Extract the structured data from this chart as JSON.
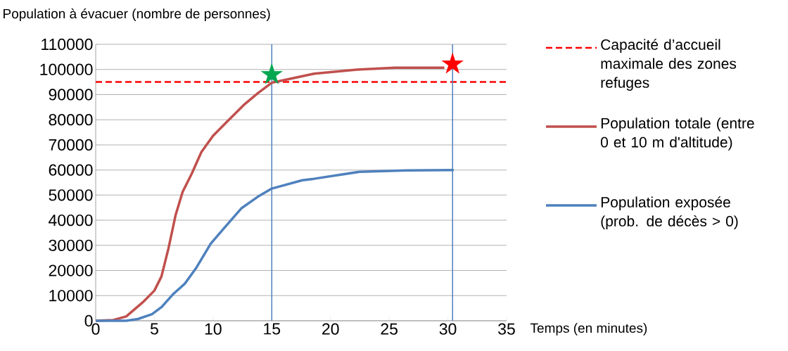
{
  "chart_data": {
    "type": "line",
    "xlabel": "Temps (en minutes)",
    "ylabel": "Population à évacuer (nombre de personnes)",
    "xlim": [
      0,
      35
    ],
    "xticks": [
      0,
      5,
      10,
      15,
      20,
      25,
      30,
      35
    ],
    "ylim": [
      0,
      110000
    ],
    "yticks": [
      0,
      10000,
      20000,
      30000,
      40000,
      50000,
      60000,
      70000,
      80000,
      90000,
      100000,
      110000
    ],
    "grid": "y",
    "legend": "right",
    "ref_lines": [
      {
        "axis": "y",
        "value": 95000,
        "label": "Capacité d’accueil maximale des zones refuges",
        "color": "#ff0000",
        "line_style": "dashed"
      },
      {
        "axis": "x",
        "value": 15,
        "color": "#4f81bd"
      },
      {
        "axis": "x",
        "value": 30.4,
        "color": "#4f81bd"
      }
    ],
    "series": [
      {
        "name": "Population totale (entre 0 et 10 m d'altitude)",
        "color": "#c0504d",
        "x": [
          0,
          1.5,
          2.6,
          4.0,
          5.0,
          5.6,
          6.2,
          6.8,
          7.4,
          8.2,
          9.0,
          10.0,
          11.2,
          12.6,
          13.8,
          15.0,
          15.8,
          18.6,
          22.5,
          25.5,
          29.7
        ],
        "values": [
          0,
          300,
          1700,
          7300,
          12000,
          17600,
          28800,
          41900,
          51200,
          58700,
          67100,
          73600,
          79300,
          85800,
          90500,
          94700,
          95500,
          98300,
          100000,
          100700,
          100700
        ]
      },
      {
        "name": "Population exposée (prob. de décès > 0)",
        "color": "#4f81bd",
        "x": [
          0,
          2.6,
          3.6,
          4.8,
          5.6,
          6.6,
          7.6,
          8.6,
          9.8,
          11.0,
          12.4,
          13.8,
          15.0,
          17.6,
          18.6,
          22.5,
          26.5,
          30.5
        ],
        "values": [
          0,
          0,
          700,
          2600,
          5400,
          10600,
          14800,
          21300,
          30700,
          37200,
          44700,
          49300,
          52600,
          55900,
          56500,
          59300,
          59800,
          60000
        ]
      },
      {
        "type": "scatter",
        "marker": "star",
        "color": "#00a650",
        "x": [
          15
        ],
        "values": [
          97900
        ]
      },
      {
        "type": "scatter",
        "marker": "star",
        "color": "#ff0000",
        "x": [
          30.4
        ],
        "values": [
          102100
        ]
      }
    ]
  }
}
